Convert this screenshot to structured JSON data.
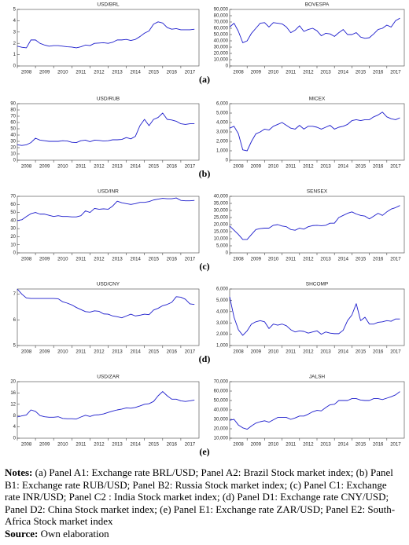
{
  "chart_data": [
    {
      "type": "line",
      "title": "USD/BRL",
      "color": "#1c1ccc",
      "xlim": [
        2008,
        2018
      ],
      "xticks": [
        2008,
        2009,
        2010,
        2011,
        2012,
        2013,
        2014,
        2015,
        2016,
        2017
      ],
      "ylim": [
        0,
        5
      ],
      "yticks": [
        0,
        1,
        2,
        3,
        4,
        5
      ],
      "x": [
        2008,
        2008.25,
        2008.5,
        2008.75,
        2009,
        2009.25,
        2009.5,
        2009.75,
        2010,
        2010.25,
        2010.5,
        2010.75,
        2011,
        2011.25,
        2011.5,
        2011.75,
        2012,
        2012.25,
        2012.5,
        2012.75,
        2013,
        2013.25,
        2013.5,
        2013.75,
        2014,
        2014.25,
        2014.5,
        2014.75,
        2015,
        2015.25,
        2015.5,
        2015.75,
        2016,
        2016.25,
        2016.5,
        2016.75,
        2017,
        2017.25,
        2017.5,
        2017.75
      ],
      "values": [
        1.75,
        1.65,
        1.6,
        2.3,
        2.3,
        2.0,
        1.85,
        1.75,
        1.8,
        1.8,
        1.75,
        1.7,
        1.67,
        1.6,
        1.7,
        1.85,
        1.8,
        2.0,
        2.03,
        2.05,
        2.0,
        2.1,
        2.3,
        2.3,
        2.35,
        2.25,
        2.35,
        2.6,
        2.9,
        3.1,
        3.7,
        3.9,
        3.8,
        3.4,
        3.25,
        3.3,
        3.2,
        3.2,
        3.2,
        3.25
      ]
    },
    {
      "type": "line",
      "title": "BOVESPA",
      "color": "#1c1ccc",
      "xlim": [
        2008,
        2018
      ],
      "xticks": [
        2008,
        2009,
        2010,
        2011,
        2012,
        2013,
        2014,
        2015,
        2016,
        2017
      ],
      "ylim": [
        0,
        90000
      ],
      "yticks": [
        0,
        {
          "value": 10000,
          "label": "10,000"
        },
        {
          "value": 20000,
          "label": "20,000"
        },
        {
          "value": 30000,
          "label": "30,000"
        },
        {
          "value": 40000,
          "label": "40,000"
        },
        {
          "value": 50000,
          "label": "50,000"
        },
        {
          "value": 60000,
          "label": "60,000"
        },
        {
          "value": 70000,
          "label": "70,000"
        },
        {
          "value": 80000,
          "label": "80,000"
        },
        {
          "value": 90000,
          "label": "90,000"
        }
      ],
      "x": [
        2008,
        2008.25,
        2008.5,
        2008.75,
        2009,
        2009.25,
        2009.5,
        2009.75,
        2010,
        2010.25,
        2010.5,
        2010.75,
        2011,
        2011.25,
        2011.5,
        2011.75,
        2012,
        2012.25,
        2012.5,
        2012.75,
        2013,
        2013.25,
        2013.5,
        2013.75,
        2014,
        2014.25,
        2014.5,
        2014.75,
        2015,
        2015.25,
        2015.5,
        2015.75,
        2016,
        2016.25,
        2016.5,
        2016.75,
        2017,
        2017.25,
        2017.5,
        2017.75
      ],
      "values": [
        62000,
        68000,
        55000,
        37000,
        40000,
        52000,
        60000,
        68000,
        69000,
        62000,
        69000,
        68000,
        67000,
        62000,
        53000,
        57000,
        64000,
        55000,
        58000,
        60000,
        56000,
        48000,
        52000,
        51000,
        47000,
        53000,
        58000,
        50000,
        50000,
        53000,
        46000,
        44000,
        45000,
        51000,
        58000,
        60000,
        65000,
        62000,
        72000,
        76000
      ]
    },
    {
      "type": "line",
      "title": "USD/RUB",
      "color": "#1c1ccc",
      "xlim": [
        2008,
        2018
      ],
      "xticks": [
        2008,
        2009,
        2010,
        2011,
        2012,
        2013,
        2014,
        2015,
        2016,
        2017
      ],
      "ylim": [
        0,
        90
      ],
      "yticks": [
        0,
        10,
        20,
        30,
        40,
        50,
        60,
        70,
        80,
        90
      ],
      "x": [
        2008,
        2008.25,
        2008.5,
        2008.75,
        2009,
        2009.25,
        2009.5,
        2009.75,
        2010,
        2010.25,
        2010.5,
        2010.75,
        2011,
        2011.25,
        2011.5,
        2011.75,
        2012,
        2012.25,
        2012.5,
        2012.75,
        2013,
        2013.25,
        2013.5,
        2013.75,
        2014,
        2014.25,
        2014.5,
        2014.75,
        2015,
        2015.25,
        2015.5,
        2015.75,
        2016,
        2016.25,
        2016.5,
        2016.75,
        2017,
        2017.25,
        2017.5,
        2017.75
      ],
      "values": [
        24.5,
        23.5,
        24.5,
        28,
        35,
        32,
        31,
        30,
        30,
        30,
        31,
        30.5,
        28.5,
        28,
        31,
        32,
        29.5,
        32,
        31.5,
        30.5,
        31,
        32.5,
        32.5,
        33,
        36,
        34,
        38,
        55,
        65,
        55,
        65,
        68,
        75,
        65,
        64,
        62,
        58,
        57,
        58,
        58
      ]
    },
    {
      "type": "line",
      "title": "MICEX",
      "color": "#1c1ccc",
      "xlim": [
        2008,
        2018
      ],
      "xticks": [
        2008,
        2009,
        2010,
        2011,
        2012,
        2013,
        2014,
        2015,
        2016,
        2017
      ],
      "ylim": [
        0,
        6000
      ],
      "yticks": [
        0,
        {
          "value": 1000,
          "label": "1,000"
        },
        {
          "value": 2000,
          "label": "2,000"
        },
        {
          "value": 3000,
          "label": "3,000"
        },
        {
          "value": 4000,
          "label": "4,000"
        },
        {
          "value": 5000,
          "label": "5,000"
        },
        {
          "value": 6000,
          "label": "6,000"
        }
      ],
      "x": [
        2008,
        2008.25,
        2008.5,
        2008.75,
        2009,
        2009.25,
        2009.5,
        2009.75,
        2010,
        2010.25,
        2010.5,
        2010.75,
        2011,
        2011.25,
        2011.5,
        2011.75,
        2012,
        2012.25,
        2012.5,
        2012.75,
        2013,
        2013.25,
        2013.5,
        2013.75,
        2014,
        2014.25,
        2014.5,
        2014.75,
        2015,
        2015.25,
        2015.5,
        2015.75,
        2016,
        2016.25,
        2016.5,
        2016.75,
        2017,
        2017.25,
        2017.5,
        2017.75
      ],
      "values": [
        3400,
        3600,
        2800,
        1100,
        1000,
        2000,
        2800,
        3000,
        3300,
        3200,
        3600,
        3800,
        4000,
        3700,
        3400,
        3300,
        3700,
        3300,
        3600,
        3600,
        3500,
        3300,
        3500,
        3700,
        3300,
        3500,
        3600,
        3800,
        4200,
        4300,
        4200,
        4300,
        4300,
        4600,
        4800,
        5100,
        4600,
        4400,
        4300,
        4500
      ]
    },
    {
      "type": "line",
      "title": "USD/INR",
      "color": "#1c1ccc",
      "xlim": [
        2008,
        2018
      ],
      "xticks": [
        2008,
        2009,
        2010,
        2011,
        2012,
        2013,
        2014,
        2015,
        2016,
        2017
      ],
      "ylim": [
        0,
        70
      ],
      "yticks": [
        0,
        10,
        20,
        30,
        40,
        50,
        60,
        70
      ],
      "x": [
        2008,
        2008.25,
        2008.5,
        2008.75,
        2009,
        2009.25,
        2009.5,
        2009.75,
        2010,
        2010.25,
        2010.5,
        2010.75,
        2011,
        2011.25,
        2011.5,
        2011.75,
        2012,
        2012.25,
        2012.5,
        2012.75,
        2013,
        2013.25,
        2013.5,
        2013.75,
        2014,
        2014.25,
        2014.5,
        2014.75,
        2015,
        2015.25,
        2015.5,
        2015.75,
        2016,
        2016.25,
        2016.5,
        2016.75,
        2017,
        2017.25,
        2017.5,
        2017.75
      ],
      "values": [
        40,
        41,
        45,
        48.5,
        50,
        48,
        48,
        46.5,
        45,
        46,
        45,
        45,
        44.5,
        44.5,
        46,
        52,
        50,
        55,
        54,
        54.5,
        54,
        58,
        64,
        62,
        61,
        60,
        61,
        62.5,
        62.5,
        63.5,
        65.5,
        66.5,
        67.5,
        67,
        67,
        68,
        65,
        64.5,
        64.5,
        65
      ]
    },
    {
      "type": "line",
      "title": "SENSEX",
      "color": "#1c1ccc",
      "xlim": [
        2008,
        2018
      ],
      "xticks": [
        2008,
        2009,
        2010,
        2011,
        2012,
        2013,
        2014,
        2015,
        2016,
        2017
      ],
      "ylim": [
        0,
        40000
      ],
      "yticks": [
        0,
        {
          "value": 5000,
          "label": "5,000"
        },
        {
          "value": 10000,
          "label": "10,000"
        },
        {
          "value": 15000,
          "label": "15,000"
        },
        {
          "value": 20000,
          "label": "20,000"
        },
        {
          "value": 25000,
          "label": "25,000"
        },
        {
          "value": 30000,
          "label": "30,000"
        },
        {
          "value": 35000,
          "label": "35,000"
        },
        {
          "value": 40000,
          "label": "40,000"
        }
      ],
      "x": [
        2008,
        2008.25,
        2008.5,
        2008.75,
        2009,
        2009.25,
        2009.5,
        2009.75,
        2010,
        2010.25,
        2010.5,
        2010.75,
        2011,
        2011.25,
        2011.5,
        2011.75,
        2012,
        2012.25,
        2012.5,
        2012.75,
        2013,
        2013.25,
        2013.5,
        2013.75,
        2014,
        2014.25,
        2014.5,
        2014.75,
        2015,
        2015.25,
        2015.5,
        2015.75,
        2016,
        2016.25,
        2016.5,
        2016.75,
        2017,
        2017.25,
        2017.5,
        2017.75
      ],
      "values": [
        19000,
        16000,
        13000,
        9500,
        9500,
        13000,
        16500,
        17200,
        17500,
        17500,
        19500,
        20000,
        19000,
        18500,
        16500,
        16000,
        17500,
        16800,
        18500,
        19300,
        19500,
        19200,
        19500,
        21000,
        21000,
        25000,
        26500,
        28000,
        29000,
        27500,
        26500,
        26000,
        24000,
        26000,
        28000,
        26500,
        29000,
        31000,
        32000,
        33500
      ]
    },
    {
      "type": "line",
      "title": "USD/CNY",
      "color": "#1c1ccc",
      "xlim": [
        2008,
        2018
      ],
      "xticks": [
        2008,
        2009,
        2010,
        2011,
        2012,
        2013,
        2014,
        2015,
        2016,
        2017
      ],
      "ylim": [
        5,
        7.2
      ],
      "yticks": [
        5,
        6,
        7
      ],
      "x": [
        2008,
        2008.25,
        2008.5,
        2008.75,
        2009,
        2009.25,
        2009.5,
        2009.75,
        2010,
        2010.25,
        2010.5,
        2010.75,
        2011,
        2011.25,
        2011.5,
        2011.75,
        2012,
        2012.25,
        2012.5,
        2012.75,
        2013,
        2013.25,
        2013.5,
        2013.75,
        2014,
        2014.25,
        2014.5,
        2014.75,
        2015,
        2015.25,
        2015.5,
        2015.75,
        2016,
        2016.25,
        2016.5,
        2016.75,
        2017,
        2017.25,
        2017.5,
        2017.75
      ],
      "values": [
        7.2,
        7.0,
        6.85,
        6.83,
        6.83,
        6.83,
        6.83,
        6.83,
        6.83,
        6.82,
        6.7,
        6.65,
        6.58,
        6.48,
        6.4,
        6.32,
        6.3,
        6.35,
        6.33,
        6.23,
        6.22,
        6.15,
        6.12,
        6.08,
        6.15,
        6.22,
        6.15,
        6.18,
        6.22,
        6.2,
        6.38,
        6.45,
        6.55,
        6.6,
        6.68,
        6.9,
        6.88,
        6.8,
        6.62,
        6.6
      ]
    },
    {
      "type": "line",
      "title": "SHCOMP",
      "color": "#1c1ccc",
      "xlim": [
        2008,
        2018
      ],
      "xticks": [
        2008,
        2009,
        2010,
        2011,
        2012,
        2013,
        2014,
        2015,
        2016,
        2017
      ],
      "ylim": [
        1000,
        6000
      ],
      "yticks": [
        {
          "value": 1000,
          "label": "1,000"
        },
        {
          "value": 2000,
          "label": "2,000"
        },
        {
          "value": 3000,
          "label": "3,000"
        },
        {
          "value": 4000,
          "label": "4,000"
        },
        {
          "value": 5000,
          "label": "5,000"
        },
        {
          "value": 6000,
          "label": "6,000"
        }
      ],
      "x": [
        2008,
        2008.25,
        2008.5,
        2008.75,
        2009,
        2009.25,
        2009.5,
        2009.75,
        2010,
        2010.25,
        2010.5,
        2010.75,
        2011,
        2011.25,
        2011.5,
        2011.75,
        2012,
        2012.25,
        2012.5,
        2012.75,
        2013,
        2013.25,
        2013.5,
        2013.75,
        2014,
        2014.25,
        2014.5,
        2014.75,
        2015,
        2015.25,
        2015.5,
        2015.75,
        2016,
        2016.25,
        2016.5,
        2016.75,
        2017,
        2017.25,
        2017.5,
        2017.75
      ],
      "values": [
        5300,
        3500,
        2400,
        1900,
        2300,
        2900,
        3100,
        3200,
        3100,
        2500,
        2900,
        2800,
        2900,
        2750,
        2400,
        2200,
        2300,
        2250,
        2100,
        2200,
        2300,
        2000,
        2200,
        2100,
        2050,
        2050,
        2350,
        3200,
        3700,
        4700,
        3200,
        3500,
        2900,
        2900,
        3050,
        3100,
        3200,
        3150,
        3350,
        3350
      ]
    },
    {
      "type": "line",
      "title": "USD/ZAR",
      "color": "#1c1ccc",
      "xlim": [
        2008,
        2018
      ],
      "xticks": [
        2008,
        2009,
        2010,
        2011,
        2012,
        2013,
        2014,
        2015,
        2016,
        2017
      ],
      "ylim": [
        0,
        20
      ],
      "yticks": [
        0,
        4,
        8,
        12,
        16,
        20
      ],
      "x": [
        2008,
        2008.25,
        2008.5,
        2008.75,
        2009,
        2009.25,
        2009.5,
        2009.75,
        2010,
        2010.25,
        2010.5,
        2010.75,
        2011,
        2011.25,
        2011.5,
        2011.75,
        2012,
        2012.25,
        2012.5,
        2012.75,
        2013,
        2013.25,
        2013.5,
        2013.75,
        2014,
        2014.25,
        2014.5,
        2014.75,
        2015,
        2015.25,
        2015.5,
        2015.75,
        2016,
        2016.25,
        2016.5,
        2016.75,
        2017,
        2017.25,
        2017.5,
        2017.75
      ],
      "values": [
        7.5,
        7.9,
        8.2,
        10,
        9.5,
        8,
        7.6,
        7.4,
        7.4,
        7.6,
        7,
        6.9,
        6.9,
        6.8,
        7.5,
        8.1,
        7.7,
        8.2,
        8.3,
        8.6,
        9.1,
        9.6,
        10,
        10.3,
        10.7,
        10.6,
        10.9,
        11.4,
        12,
        12.2,
        13,
        15,
        16.5,
        15,
        13.8,
        13.8,
        13.2,
        13,
        13.2,
        13.5
      ]
    },
    {
      "type": "line",
      "title": "JALSH",
      "color": "#1c1ccc",
      "xlim": [
        2008,
        2018
      ],
      "xticks": [
        2008,
        2009,
        2010,
        2011,
        2012,
        2013,
        2014,
        2015,
        2016,
        2017
      ],
      "ylim": [
        10000,
        70000
      ],
      "yticks": [
        {
          "value": 10000,
          "label": "10,000"
        },
        {
          "value": 20000,
          "label": "20,000"
        },
        {
          "value": 30000,
          "label": "30,000"
        },
        {
          "value": 40000,
          "label": "40,000"
        },
        {
          "value": 50000,
          "label": "50,000"
        },
        {
          "value": 60000,
          "label": "60,000"
        },
        {
          "value": 70000,
          "label": "70,000"
        }
      ],
      "x": [
        2008,
        2008.25,
        2008.5,
        2008.75,
        2009,
        2009.25,
        2009.5,
        2009.75,
        2010,
        2010.25,
        2010.5,
        2010.75,
        2011,
        2011.25,
        2011.5,
        2011.75,
        2012,
        2012.25,
        2012.5,
        2012.75,
        2013,
        2013.25,
        2013.5,
        2013.75,
        2014,
        2014.25,
        2014.5,
        2014.75,
        2015,
        2015.25,
        2015.5,
        2015.75,
        2016,
        2016.25,
        2016.5,
        2016.75,
        2017,
        2017.25,
        2017.5,
        2017.75
      ],
      "values": [
        29000,
        30000,
        24000,
        21000,
        19500,
        23000,
        26000,
        27500,
        28500,
        27000,
        29500,
        32000,
        32000,
        32000,
        30000,
        31500,
        33500,
        33500,
        35500,
        38000,
        39500,
        39000,
        42500,
        45500,
        46000,
        50000,
        50000,
        50000,
        52000,
        52000,
        50500,
        50000,
        50000,
        52000,
        52000,
        51000,
        52500,
        54000,
        56000,
        59500
      ]
    }
  ],
  "panel_labels": [
    "(a)",
    "(b)",
    "(c)",
    "(d)",
    "(e)"
  ],
  "notes": {
    "label": "Notes:",
    "text": "(a) Panel A1: Exchange rate BRL/USD; Panel A2: Brazil Stock market index; (b) Panel B1: Exchange rate RUB/USD; Panel B2: Russia Stock market index; (c) Panel C1: Exchange rate INR/USD; Panel C2 : India Stock market index; (d) Panel D1: Exchange rate CNY/USD; Panel D2: China Stock market index; (e) Panel E1: Exchange rate ZAR/USD; Panel E2: South-Africa Stock market index"
  },
  "source": {
    "label": "Source:",
    "text": "Own elaboration"
  }
}
